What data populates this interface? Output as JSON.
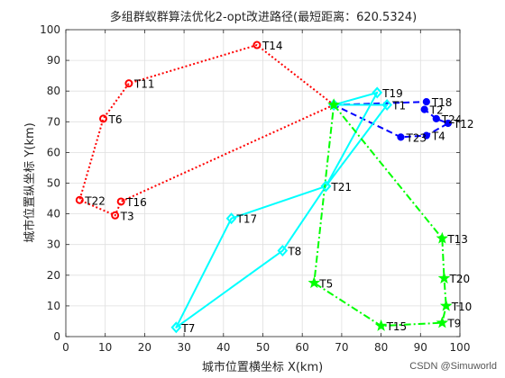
{
  "chart_data": {
    "type": "line",
    "title": "多组群蚁群算法优化2-opt改进路径(最短距离：620.5324)",
    "xlabel": "城市位置横坐标 X(km)",
    "ylabel": "城市位置纵坐标 Y(km)",
    "xlim": [
      0,
      100
    ],
    "ylim": [
      0,
      100
    ],
    "xticks": [
      0,
      10,
      20,
      30,
      40,
      50,
      60,
      70,
      80,
      90,
      100
    ],
    "yticks": [
      0,
      10,
      20,
      30,
      40,
      50,
      60,
      70,
      80,
      90,
      100
    ],
    "grid": true,
    "depot": {
      "label": "T1",
      "x": 68,
      "y": 75.5
    },
    "cities": [
      {
        "label": "T1",
        "x": 81.5,
        "y": 75.5
      },
      {
        "label": "T2",
        "x": 91,
        "y": 74
      },
      {
        "label": "T3",
        "x": 12.5,
        "y": 39.5
      },
      {
        "label": "T4",
        "x": 91.5,
        "y": 65.5
      },
      {
        "label": "T5",
        "x": 63,
        "y": 17.5
      },
      {
        "label": "T6",
        "x": 9.5,
        "y": 71
      },
      {
        "label": "T7",
        "x": 28,
        "y": 3
      },
      {
        "label": "T8",
        "x": 55,
        "y": 28
      },
      {
        "label": "T9",
        "x": 95.5,
        "y": 4.5
      },
      {
        "label": "T10",
        "x": 96.5,
        "y": 10
      },
      {
        "label": "T11",
        "x": 16,
        "y": 82.5
      },
      {
        "label": "T12",
        "x": 97,
        "y": 69.5
      },
      {
        "label": "T13",
        "x": 95.5,
        "y": 32
      },
      {
        "label": "T14",
        "x": 48.5,
        "y": 95
      },
      {
        "label": "T15",
        "x": 80,
        "y": 3.5
      },
      {
        "label": "T16",
        "x": 14,
        "y": 44
      },
      {
        "label": "T17",
        "x": 42,
        "y": 38.5
      },
      {
        "label": "T18",
        "x": 91.5,
        "y": 76.5
      },
      {
        "label": "T19",
        "x": 79,
        "y": 79.5
      },
      {
        "label": "T20",
        "x": 96,
        "y": 19
      },
      {
        "label": "T21",
        "x": 66,
        "y": 49
      },
      {
        "label": "T22",
        "x": 3.5,
        "y": 44.5
      },
      {
        "label": "T23",
        "x": 85,
        "y": 65
      },
      {
        "label": "T24",
        "x": 94,
        "y": 71
      }
    ],
    "routes": [
      {
        "color": "#ff0000",
        "style": "dotted",
        "marker": "circle-hollow",
        "path": [
          "T1",
          "T14",
          "T11",
          "T6",
          "T22",
          "T3",
          "T16",
          "T1"
        ]
      },
      {
        "color": "#0000ff",
        "style": "dashed",
        "marker": "circle-filled",
        "path": [
          "T1",
          "T18",
          "T2",
          "T24",
          "T12",
          "T4",
          "T23",
          "T1"
        ]
      },
      {
        "color": "#00ffff",
        "style": "solid",
        "marker": "diamond-hollow",
        "path": [
          "T1",
          "T19",
          "T21",
          "T17",
          "T7",
          "T8",
          "T21",
          "T1",
          "T1"
        ]
      },
      {
        "color": "#00ff00",
        "style": "dashdot",
        "marker": "pentagram",
        "path": [
          "T1",
          "T13",
          "T20",
          "T10",
          "T9",
          "T15",
          "T5",
          "T1"
        ]
      }
    ]
  },
  "watermark": "CSDN @Simuworld"
}
